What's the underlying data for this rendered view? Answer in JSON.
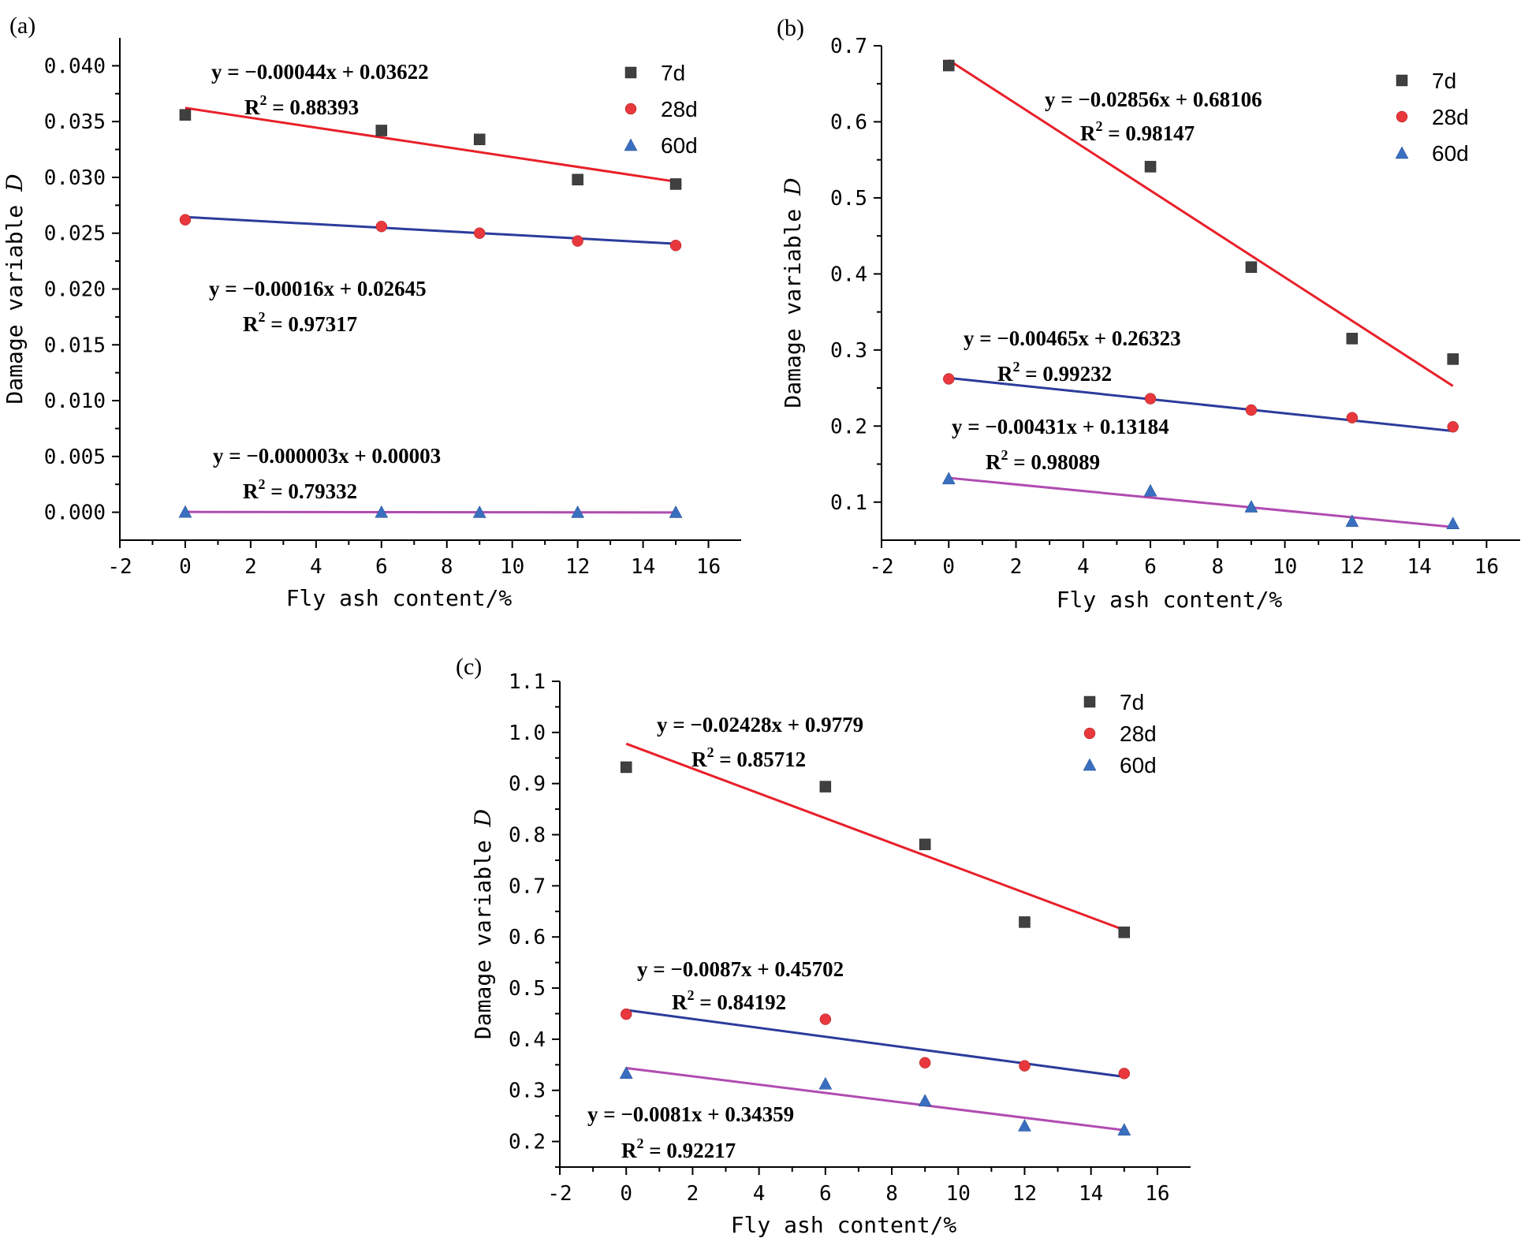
{
  "chart_data": [
    {
      "type": "scatter",
      "panel": "(a)",
      "xlabel": "Fly ash content/%",
      "ylabel_main": "Damage variable ",
      "ylabel_var": "D",
      "xlim": [
        -2,
        17
      ],
      "ylim": [
        -0.0025,
        0.0425
      ],
      "xticks": [
        -2,
        0,
        2,
        4,
        6,
        8,
        10,
        12,
        14,
        16
      ],
      "yticks": [
        0.0,
        0.005,
        0.01,
        0.015,
        0.02,
        0.025,
        0.03,
        0.035,
        0.04
      ],
      "ytick_labels": [
        "0.000",
        "0.005",
        "0.010",
        "0.015",
        "0.020",
        "0.025",
        "0.030",
        "0.035",
        "0.040"
      ],
      "x": [
        0,
        6,
        9,
        12,
        15
      ],
      "legend_position": "top-right",
      "series": [
        {
          "name": "7d",
          "marker": "square",
          "color": "#404040",
          "values": [
            0.0356,
            0.0342,
            0.0334,
            0.0298,
            0.0294
          ],
          "fit_color": "#e8202a",
          "fit": {
            "slope": -0.00044,
            "intercept": 0.03622
          }
        },
        {
          "name": "28d",
          "marker": "circle",
          "color": "#e8383d",
          "values": [
            0.0262,
            0.0256,
            0.025,
            0.0243,
            0.0239
          ],
          "fit_color": "#2b3c9c",
          "fit": {
            "slope": -0.00016,
            "intercept": 0.02645
          }
        },
        {
          "name": "60d",
          "marker": "triangle",
          "color": "#3a6fc0",
          "values": [
            3e-05,
            2e-05,
            1e-05,
            1e-05,
            1e-05
          ],
          "fit_color": "#b04cb0",
          "fit": {
            "slope": -3e-06,
            "intercept": 3e-05
          }
        }
      ],
      "equations": [
        {
          "eq": "y = −0.00044x + 0.03622",
          "r2_value": " = 0.88393"
        },
        {
          "eq": "y = −0.00016x + 0.02645",
          "r2_value": " = 0.97317"
        },
        {
          "eq": "y = −0.000003x + 0.00003",
          "r2_value": " = 0.79332"
        }
      ]
    },
    {
      "type": "scatter",
      "panel": "(b)",
      "xlabel": "Fly ash content/%",
      "ylabel_main": "Damage variable ",
      "ylabel_var": "D",
      "xlim": [
        -2,
        17
      ],
      "ylim": [
        0.05,
        0.7
      ],
      "xticks": [
        -2,
        0,
        2,
        4,
        6,
        8,
        10,
        12,
        14,
        16
      ],
      "yticks": [
        0.1,
        0.2,
        0.3,
        0.4,
        0.5,
        0.6,
        0.7
      ],
      "ytick_labels": [
        "0.1",
        "0.2",
        "0.3",
        "0.4",
        "0.5",
        "0.6",
        "0.7"
      ],
      "x": [
        0,
        6,
        9,
        12,
        15
      ],
      "legend_position": "top-right",
      "series": [
        {
          "name": "7d",
          "marker": "square",
          "color": "#404040",
          "values": [
            0.674,
            0.541,
            0.409,
            0.315,
            0.288
          ],
          "fit_color": "#e8202a",
          "fit": {
            "slope": -0.02856,
            "intercept": 0.68106
          }
        },
        {
          "name": "28d",
          "marker": "circle",
          "color": "#e8383d",
          "values": [
            0.262,
            0.236,
            0.221,
            0.211,
            0.199
          ],
          "fit_color": "#2b3c9c",
          "fit": {
            "slope": -0.00465,
            "intercept": 0.26323
          }
        },
        {
          "name": "60d",
          "marker": "triangle",
          "color": "#3a6fc0",
          "values": [
            0.131,
            0.115,
            0.094,
            0.075,
            0.072
          ],
          "fit_color": "#b04cb0",
          "fit": {
            "slope": -0.00431,
            "intercept": 0.13184
          }
        }
      ],
      "equations": [
        {
          "eq": "y = −0.02856x + 0.68106",
          "r2_value": " = 0.98147"
        },
        {
          "eq": "y = −0.00465x + 0.26323",
          "r2_value": " = 0.99232"
        },
        {
          "eq": "y = −0.00431x + 0.13184",
          "r2_value": " = 0.98089"
        }
      ]
    },
    {
      "type": "scatter",
      "panel": "(c)",
      "xlabel": "Fly ash content/%",
      "ylabel_main": "Damage variable ",
      "ylabel_var": "D",
      "xlim": [
        -2,
        17
      ],
      "ylim": [
        0.15,
        1.1
      ],
      "xticks": [
        -2,
        0,
        2,
        4,
        6,
        8,
        10,
        12,
        14,
        16
      ],
      "yticks": [
        0.2,
        0.3,
        0.4,
        0.5,
        0.6,
        0.7,
        0.8,
        0.9,
        1.0,
        1.1
      ],
      "ytick_labels": [
        "0.2",
        "0.3",
        "0.4",
        "0.5",
        "0.6",
        "0.7",
        "0.8",
        "0.9",
        "1.0",
        "1.1"
      ],
      "x": [
        0,
        6,
        9,
        12,
        15
      ],
      "legend_position": "top-right",
      "series": [
        {
          "name": "7d",
          "marker": "square",
          "color": "#404040",
          "values": [
            0.932,
            0.894,
            0.781,
            0.629,
            0.609
          ],
          "fit_color": "#e8202a",
          "fit": {
            "slope": -0.02428,
            "intercept": 0.9779
          }
        },
        {
          "name": "28d",
          "marker": "circle",
          "color": "#e8383d",
          "values": [
            0.449,
            0.439,
            0.354,
            0.348,
            0.333
          ],
          "fit_color": "#2b3c9c",
          "fit": {
            "slope": -0.0087,
            "intercept": 0.45702
          }
        },
        {
          "name": "60d",
          "marker": "triangle",
          "color": "#3a6fc0",
          "values": [
            0.334,
            0.313,
            0.28,
            0.231,
            0.223
          ],
          "fit_color": "#b04cb0",
          "fit": {
            "slope": -0.0081,
            "intercept": 0.34359
          }
        }
      ],
      "equations": [
        {
          "eq": "y =  −0.02428x + 0.9779",
          "r2_value": " = 0.85712"
        },
        {
          "eq": "y =  −0.0087x + 0.45702",
          "r2_value": " = 0.84192"
        },
        {
          "eq": "y = −0.0081x + 0.34359",
          "r2_value": " = 0.92217"
        }
      ]
    }
  ]
}
